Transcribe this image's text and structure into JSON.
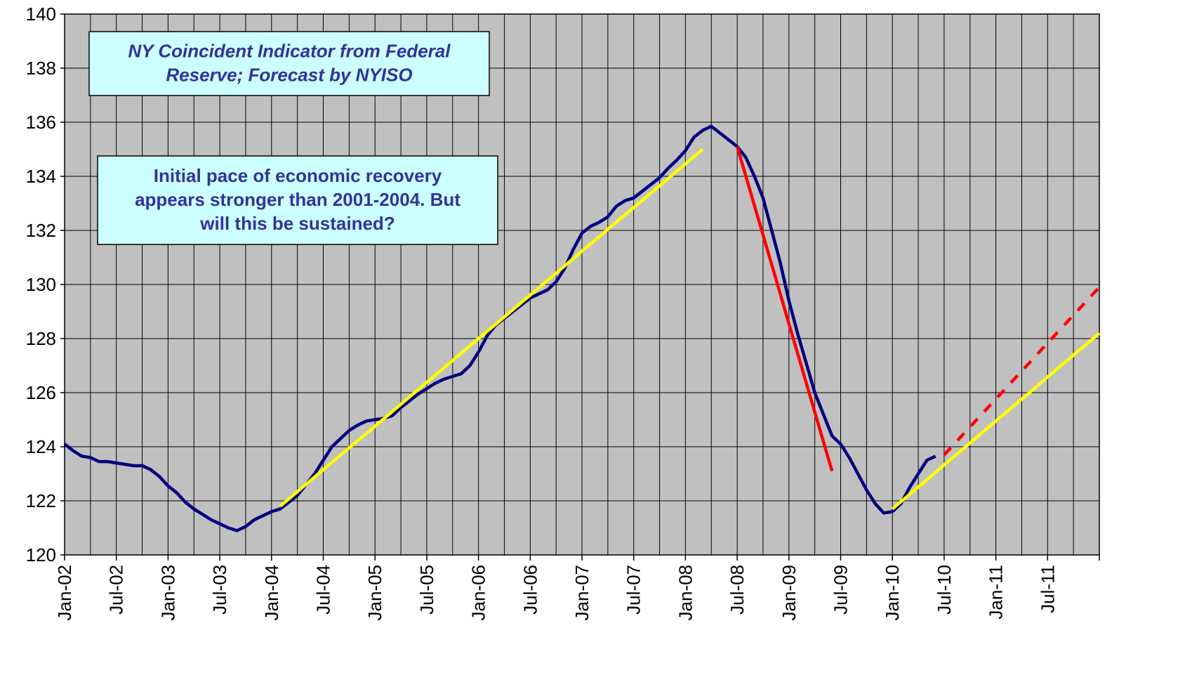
{
  "chart_data": {
    "type": "line",
    "categories": [
      "Jan-02",
      null,
      null,
      null,
      null,
      null,
      "Jul-02",
      null,
      null,
      null,
      null,
      null,
      "Jan-03",
      null,
      null,
      null,
      null,
      null,
      "Jul-03",
      null,
      null,
      null,
      null,
      null,
      "Jan-04",
      null,
      null,
      null,
      null,
      null,
      "Jul-04",
      null,
      null,
      null,
      null,
      null,
      "Jan-05",
      null,
      null,
      null,
      null,
      null,
      "Jul-05",
      null,
      null,
      null,
      null,
      null,
      "Jan-06",
      null,
      null,
      null,
      null,
      null,
      "Jul-06",
      null,
      null,
      null,
      null,
      null,
      "Jan-07",
      null,
      null,
      null,
      null,
      null,
      "Jul-07",
      null,
      null,
      null,
      null,
      null,
      "Jan-08",
      null,
      null,
      null,
      null,
      null,
      "Jul-08",
      null,
      null,
      null,
      null,
      null,
      "Jan-09",
      null,
      null,
      null,
      null,
      null,
      "Jul-09",
      null,
      null,
      null,
      null,
      null,
      "Jan-10",
      null,
      null,
      null,
      null,
      null,
      "Jul-10",
      null,
      null,
      null,
      null,
      null,
      "Jan-11",
      null,
      null,
      null,
      null,
      null,
      "Jul-11",
      null,
      null,
      null,
      null,
      null,
      null
    ],
    "series": [
      {
        "color": "#000080",
        "dashed": false,
        "values": [
          124.1,
          123.85,
          123.65,
          123.6,
          123.45,
          123.45,
          123.4,
          123.35,
          123.3,
          123.3,
          123.15,
          122.9,
          122.55,
          122.3,
          121.95,
          121.7,
          121.5,
          121.3,
          121.15,
          121.0,
          120.9,
          121.05,
          121.3,
          121.45,
          121.6,
          121.7,
          121.95,
          122.2,
          122.6,
          123.0,
          123.5,
          124.0,
          124.3,
          124.6,
          124.8,
          124.95,
          125.0,
          125.05,
          125.15,
          125.45,
          125.7,
          125.95,
          126.15,
          126.35,
          126.5,
          126.6,
          126.7,
          127.0,
          127.5,
          128.1,
          128.5,
          128.75,
          129.0,
          129.25,
          129.5,
          129.65,
          129.8,
          130.1,
          130.6,
          131.3,
          131.9,
          132.15,
          132.3,
          132.5,
          132.9,
          133.1,
          133.2,
          133.45,
          133.7,
          133.95,
          134.3,
          134.6,
          134.95,
          135.45,
          135.7,
          135.85,
          135.6,
          135.35,
          135.1,
          134.7,
          134.0,
          133.2,
          132.0,
          130.8,
          129.4,
          128.2,
          127.1,
          126.0,
          125.2,
          124.4,
          124.1,
          123.6,
          123.0,
          122.4,
          121.9,
          121.55,
          121.6,
          121.9,
          122.5,
          123.0,
          123.5,
          123.65,
          null,
          null,
          null,
          null,
          null,
          null,
          null,
          null,
          null,
          null,
          null,
          null,
          null,
          null,
          null,
          null,
          null,
          null,
          null
        ]
      },
      {
        "color": "#ffff00",
        "dashed": false,
        "values": [
          null,
          null,
          null,
          null,
          null,
          null,
          null,
          null,
          null,
          null,
          null,
          null,
          null,
          null,
          null,
          null,
          null,
          null,
          null,
          null,
          null,
          null,
          null,
          null,
          null,
          121.8,
          122.07,
          122.34,
          122.61,
          122.88,
          123.15,
          123.42,
          123.69,
          123.96,
          124.22,
          124.49,
          124.76,
          125.03,
          125.3,
          125.57,
          125.84,
          126.11,
          126.38,
          126.65,
          126.92,
          127.19,
          127.46,
          127.73,
          128.0,
          128.27,
          128.53,
          128.8,
          129.07,
          129.34,
          129.61,
          129.88,
          130.15,
          130.42,
          130.69,
          130.96,
          131.23,
          131.5,
          131.77,
          132.04,
          132.31,
          132.58,
          132.84,
          133.11,
          133.38,
          133.65,
          133.92,
          134.19,
          134.46,
          134.73,
          135.0,
          null,
          null,
          null,
          null,
          null,
          null,
          null,
          null,
          null,
          null,
          null,
          null,
          null,
          null,
          null,
          null,
          null,
          null,
          null,
          null,
          null,
          null,
          null,
          null,
          null,
          null,
          null,
          null,
          null,
          null,
          null,
          null,
          null,
          null,
          null,
          null,
          null,
          null,
          null,
          null,
          null,
          null,
          null,
          null,
          null,
          null
        ]
      },
      {
        "color": "#ff0000",
        "dashed": false,
        "values": [
          null,
          null,
          null,
          null,
          null,
          null,
          null,
          null,
          null,
          null,
          null,
          null,
          null,
          null,
          null,
          null,
          null,
          null,
          null,
          null,
          null,
          null,
          null,
          null,
          null,
          null,
          null,
          null,
          null,
          null,
          null,
          null,
          null,
          null,
          null,
          null,
          null,
          null,
          null,
          null,
          null,
          null,
          null,
          null,
          null,
          null,
          null,
          null,
          null,
          null,
          null,
          null,
          null,
          null,
          null,
          null,
          null,
          null,
          null,
          null,
          null,
          null,
          null,
          null,
          null,
          null,
          null,
          null,
          null,
          null,
          null,
          null,
          null,
          null,
          null,
          null,
          null,
          null,
          135.1,
          134.01,
          132.92,
          131.83,
          130.74,
          129.65,
          128.55,
          127.46,
          126.37,
          125.28,
          124.19,
          123.1,
          null,
          null,
          null,
          null,
          null,
          null,
          null,
          null,
          null,
          null,
          null,
          null,
          null,
          null,
          null,
          null,
          null,
          null,
          null,
          null,
          null,
          null,
          null,
          null,
          null,
          null,
          null,
          null,
          null,
          null,
          null
        ]
      },
      {
        "color": "#ffff00",
        "dashed": false,
        "values": [
          null,
          null,
          null,
          null,
          null,
          null,
          null,
          null,
          null,
          null,
          null,
          null,
          null,
          null,
          null,
          null,
          null,
          null,
          null,
          null,
          null,
          null,
          null,
          null,
          null,
          null,
          null,
          null,
          null,
          null,
          null,
          null,
          null,
          null,
          null,
          null,
          null,
          null,
          null,
          null,
          null,
          null,
          null,
          null,
          null,
          null,
          null,
          null,
          null,
          null,
          null,
          null,
          null,
          null,
          null,
          null,
          null,
          null,
          null,
          null,
          null,
          null,
          null,
          null,
          null,
          null,
          null,
          null,
          null,
          null,
          null,
          null,
          null,
          null,
          null,
          null,
          null,
          null,
          null,
          null,
          null,
          null,
          null,
          null,
          null,
          null,
          null,
          null,
          null,
          null,
          null,
          null,
          null,
          null,
          null,
          null,
          121.7,
          121.97,
          122.24,
          122.51,
          122.78,
          123.05,
          123.33,
          123.6,
          123.87,
          124.14,
          124.41,
          124.68,
          124.95,
          125.22,
          125.49,
          125.76,
          126.03,
          126.3,
          126.58,
          126.85,
          127.12,
          127.39,
          127.66,
          127.93,
          128.2
        ]
      },
      {
        "color": "#ff0000",
        "dashed": true,
        "values": [
          null,
          null,
          null,
          null,
          null,
          null,
          null,
          null,
          null,
          null,
          null,
          null,
          null,
          null,
          null,
          null,
          null,
          null,
          null,
          null,
          null,
          null,
          null,
          null,
          null,
          null,
          null,
          null,
          null,
          null,
          null,
          null,
          null,
          null,
          null,
          null,
          null,
          null,
          null,
          null,
          null,
          null,
          null,
          null,
          null,
          null,
          null,
          null,
          null,
          null,
          null,
          null,
          null,
          null,
          null,
          null,
          null,
          null,
          null,
          null,
          null,
          null,
          null,
          null,
          null,
          null,
          null,
          null,
          null,
          null,
          null,
          null,
          null,
          null,
          null,
          null,
          null,
          null,
          null,
          null,
          null,
          null,
          null,
          null,
          null,
          null,
          null,
          null,
          null,
          null,
          null,
          null,
          null,
          null,
          null,
          null,
          null,
          null,
          null,
          null,
          null,
          null,
          123.7,
          124.04,
          124.39,
          124.73,
          125.08,
          125.42,
          125.77,
          126.11,
          126.46,
          126.8,
          127.14,
          127.49,
          127.83,
          128.18,
          128.52,
          128.87,
          129.21,
          129.56,
          129.9
        ]
      }
    ],
    "ylim": [
      120,
      140
    ],
    "yticks": [
      120,
      122,
      124,
      126,
      128,
      130,
      132,
      134,
      136,
      138,
      140
    ],
    "grid": true,
    "annotations": [
      {
        "lines": [
          "NY Coincident Indicator from Federal",
          "Reserve; Forecast by NYISO"
        ],
        "italic": true
      },
      {
        "lines": [
          "Initial pace of economic recovery",
          "appears stronger than 2001-2004. But",
          "will this be sustained?"
        ],
        "italic": false
      }
    ]
  }
}
